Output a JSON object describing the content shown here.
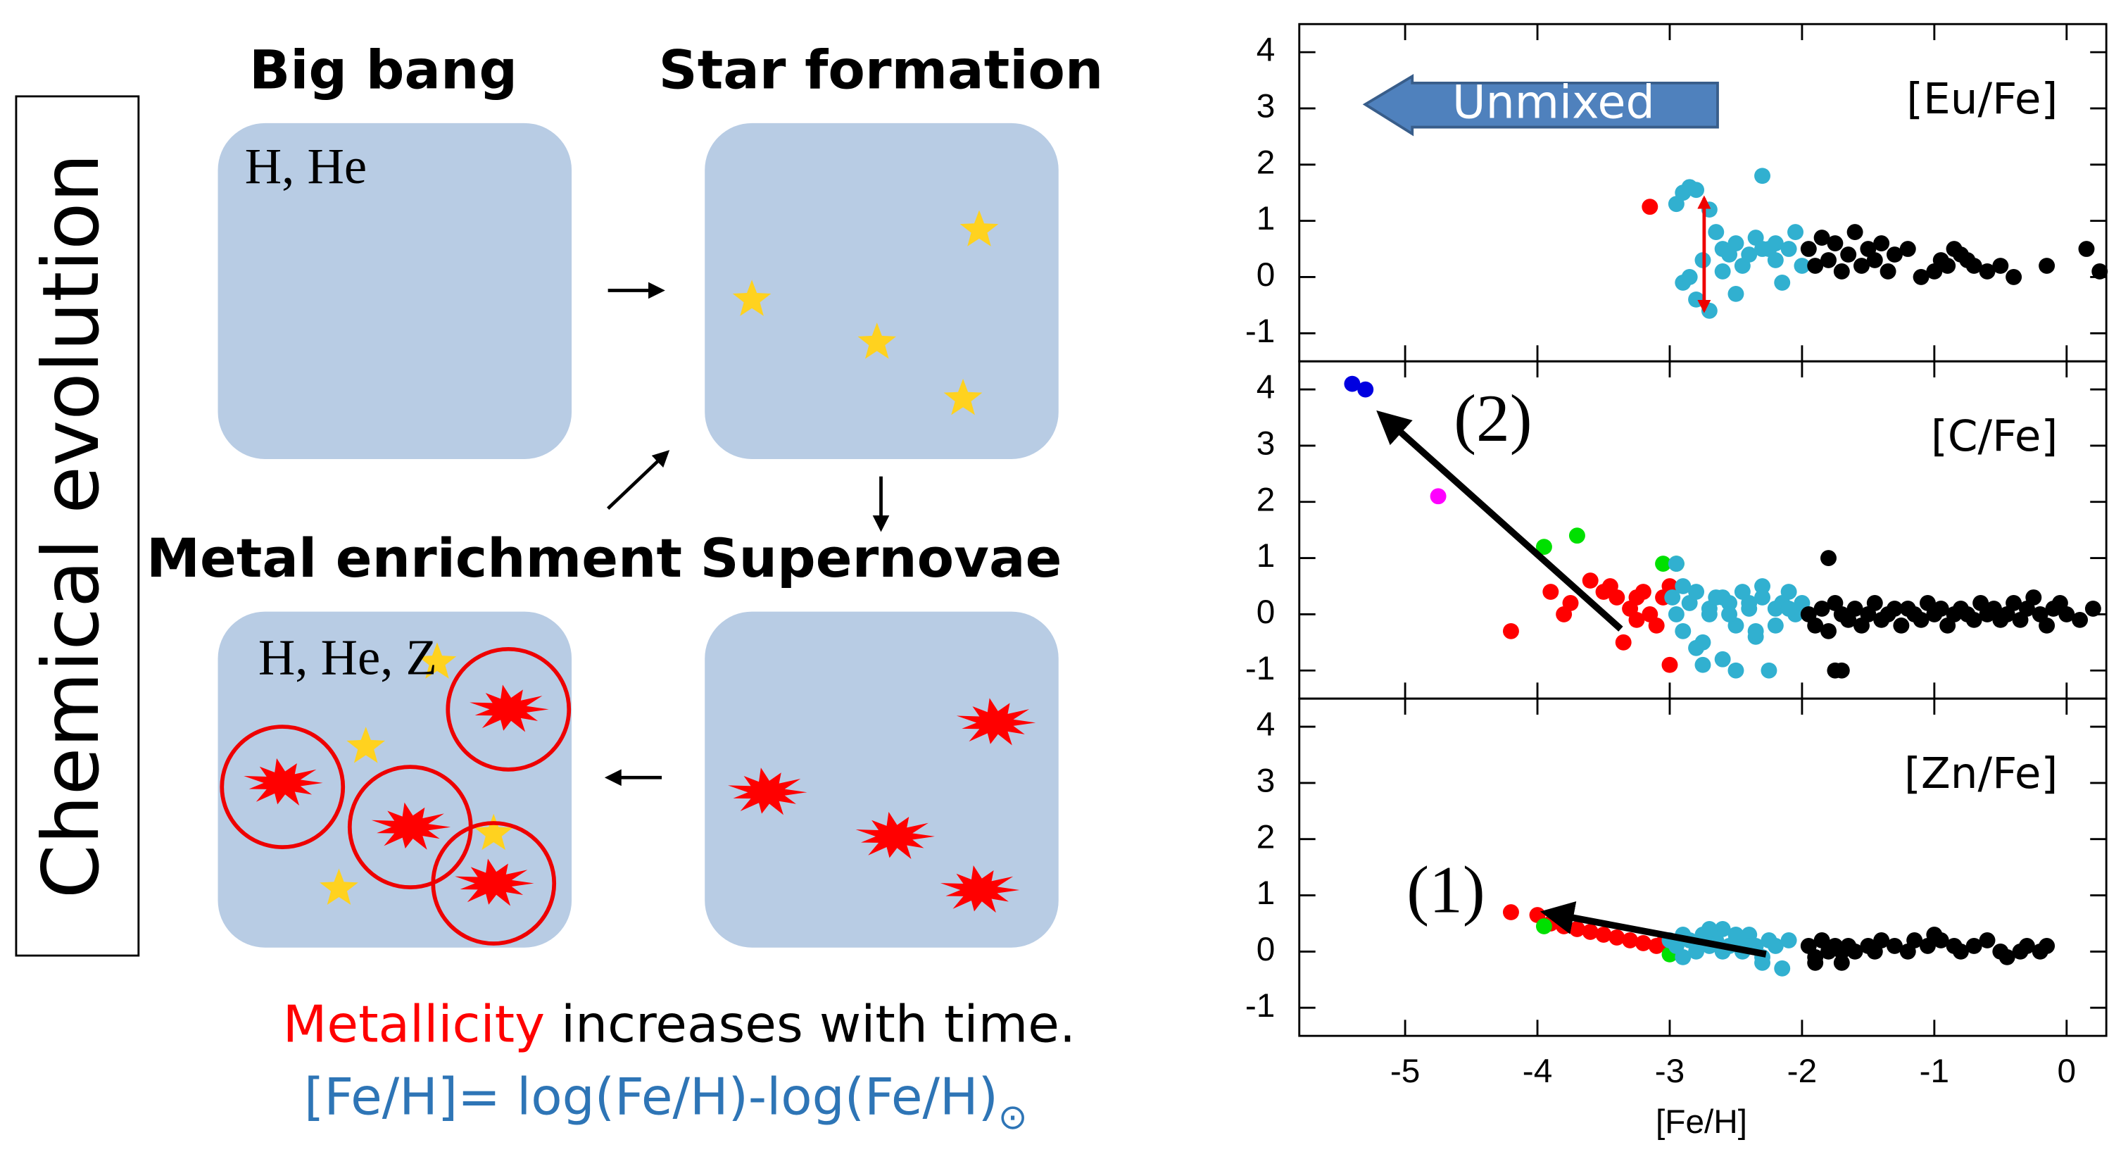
{
  "diagram": {
    "vertical_title": "Chemical evolution",
    "big_bang": "Big bang",
    "star_formation": "Star formation",
    "metal_enrichment": "Metal enrichment",
    "supernovae": "Supernovae",
    "box_big_bang": "H, He",
    "box_metal": "H, He, Z",
    "caption_highlight": "Metallicity",
    "caption_rest": "increases with time.",
    "formula": "[Fe/H]= log(Fe/H)-log(Fe/H)",
    "formula_subscript": "⊙"
  },
  "chart_data": [
    {
      "type": "scatter",
      "title": "[Eu/Fe]",
      "annotation": "Unmixed",
      "xlim": [
        -5.8,
        0.3
      ],
      "xticks": [
        -5,
        -4,
        -3,
        -2,
        -1,
        0
      ],
      "ylim": [
        -1.5,
        4.5
      ],
      "yticks": [
        -1,
        0,
        1,
        2,
        3,
        4
      ],
      "series": [
        {
          "color": "#ff0000",
          "x": [
            -3.15
          ],
          "values": [
            1.25
          ]
        },
        {
          "color": "#31b0d0",
          "x": [
            -2.95,
            -2.9,
            -2.85,
            -2.8,
            -2.75,
            -2.7,
            -2.65,
            -2.6,
            -2.55,
            -2.5,
            -2.45,
            -2.4,
            -2.35,
            -2.3,
            -2.25,
            -2.2,
            -2.15,
            -2.1,
            -2.05,
            -2.0,
            -2.9,
            -2.8,
            -2.7,
            -2.85,
            -2.3,
            -2.5,
            -2.6,
            -2.2
          ],
          "values": [
            1.3,
            1.5,
            1.6,
            1.55,
            0.3,
            1.2,
            0.8,
            0.5,
            0.4,
            0.6,
            0.2,
            0.4,
            0.7,
            1.8,
            0.5,
            0.3,
            -0.1,
            0.5,
            0.8,
            0.2,
            -0.1,
            -0.4,
            -0.6,
            0.0,
            0.5,
            -0.3,
            0.1,
            0.6
          ]
        },
        {
          "color": "#000000",
          "x": [
            -1.95,
            -1.9,
            -1.85,
            -1.8,
            -1.75,
            -1.7,
            -1.65,
            -1.6,
            -1.55,
            -1.5,
            -1.45,
            -1.4,
            -1.35,
            -1.3,
            -1.2,
            -1.1,
            -1.0,
            -0.95,
            -0.9,
            -0.85,
            -0.8,
            -0.75,
            -0.7,
            -0.6,
            -0.5,
            -0.4,
            -0.15,
            0.15,
            0.25
          ],
          "values": [
            0.5,
            0.2,
            0.7,
            0.3,
            0.6,
            0.1,
            0.4,
            0.8,
            0.2,
            0.5,
            0.3,
            0.6,
            0.1,
            0.4,
            0.5,
            0.0,
            0.1,
            0.3,
            0.2,
            0.5,
            0.4,
            0.3,
            0.2,
            0.1,
            0.2,
            0.0,
            0.2,
            0.5,
            0.1
          ]
        }
      ]
    },
    {
      "type": "scatter",
      "title": "[C/Fe]",
      "annotation": "(2)",
      "xlim": [
        -5.8,
        0.3
      ],
      "xticks": [
        -5,
        -4,
        -3,
        -2,
        -1,
        0
      ],
      "ylim": [
        -1.5,
        4.5
      ],
      "yticks": [
        -1,
        0,
        1,
        2,
        3,
        4
      ],
      "series": [
        {
          "color": "#0000e0",
          "x": [
            -5.4,
            -5.3
          ],
          "values": [
            4.1,
            4.0
          ]
        },
        {
          "color": "#ff00ff",
          "x": [
            -4.75
          ],
          "values": [
            2.1
          ]
        },
        {
          "color": "#00e000",
          "x": [
            -3.95,
            -3.7,
            -3.05,
            -2.95
          ],
          "values": [
            1.2,
            1.4,
            0.9,
            0.9
          ]
        },
        {
          "color": "#ff0000",
          "x": [
            -4.2,
            -3.9,
            -3.8,
            -3.75,
            -3.6,
            -3.5,
            -3.45,
            -3.4,
            -3.35,
            -3.3,
            -3.25,
            -3.2,
            -3.15,
            -3.1,
            -3.05,
            -3.0,
            -3.0,
            -3.25
          ],
          "values": [
            -0.3,
            0.4,
            0.0,
            0.2,
            0.6,
            0.4,
            0.5,
            0.3,
            -0.5,
            0.1,
            0.3,
            0.4,
            0.0,
            -0.2,
            0.3,
            -0.9,
            0.5,
            -0.1
          ]
        },
        {
          "color": "#31b0d0",
          "x": [
            -2.98,
            -2.95,
            -2.9,
            -2.85,
            -2.8,
            -2.75,
            -2.7,
            -2.65,
            -2.6,
            -2.55,
            -2.5,
            -2.45,
            -2.4,
            -2.35,
            -2.3,
            -2.25,
            -2.2,
            -2.15,
            -2.1,
            -2.05,
            -2.0,
            -2.9,
            -2.8,
            -2.7,
            -2.6,
            -2.5,
            -2.4,
            -2.3,
            -2.2,
            -2.1,
            -2.95,
            -2.75,
            -2.55,
            -2.35
          ],
          "values": [
            0.3,
            0.0,
            -0.3,
            0.2,
            0.4,
            -0.5,
            0.1,
            0.3,
            -0.8,
            0.2,
            -0.2,
            0.4,
            0.1,
            -0.4,
            0.3,
            -1.0,
            0.1,
            0.2,
            0.4,
            0.0,
            0.2,
            0.5,
            -0.6,
            0.0,
            0.3,
            -1.0,
            0.2,
            0.5,
            -0.2,
            0.1,
            0.9,
            -0.9,
            0.0,
            -0.3
          ]
        },
        {
          "color": "#000000",
          "x": [
            -1.95,
            -1.9,
            -1.85,
            -1.8,
            -1.75,
            -1.7,
            -1.65,
            -1.6,
            -1.55,
            -1.5,
            -1.45,
            -1.4,
            -1.35,
            -1.3,
            -1.25,
            -1.2,
            -1.15,
            -1.1,
            -1.05,
            -1.0,
            -0.95,
            -0.9,
            -0.85,
            -0.8,
            -0.75,
            -0.7,
            -0.65,
            -0.6,
            -0.55,
            -0.5,
            -0.45,
            -0.4,
            -0.35,
            -0.3,
            -0.25,
            -0.2,
            -0.15,
            -0.1,
            -0.05,
            0.0,
            0.1,
            0.2,
            -1.8,
            -1.75,
            -1.7
          ],
          "values": [
            0.0,
            -0.2,
            0.1,
            -0.3,
            0.2,
            0.0,
            -0.1,
            0.1,
            -0.2,
            0.0,
            0.2,
            -0.1,
            0.0,
            0.1,
            -0.2,
            0.1,
            0.0,
            -0.1,
            0.2,
            0.0,
            0.1,
            -0.2,
            0.0,
            0.1,
            0.0,
            -0.1,
            0.2,
            0.0,
            0.1,
            -0.1,
            0.0,
            0.2,
            -0.1,
            0.1,
            0.3,
            0.0,
            -0.2,
            0.1,
            0.2,
            0.0,
            -0.1,
            0.1,
            1.0,
            -1.0,
            -1.0
          ]
        }
      ]
    },
    {
      "type": "scatter",
      "title": "[Zn/Fe]",
      "annotation": "(1)",
      "x_label": "[Fe/H]",
      "xlim": [
        -5.8,
        0.3
      ],
      "xticks": [
        -5,
        -4,
        -3,
        -2,
        -1,
        0
      ],
      "ylim": [
        -1.5,
        4.5
      ],
      "yticks": [
        -1,
        0,
        1,
        2,
        3,
        4
      ],
      "series": [
        {
          "color": "#ff0000",
          "x": [
            -4.2,
            -4.0,
            -3.9,
            -3.8,
            -3.7,
            -3.6,
            -3.5,
            -3.4,
            -3.3,
            -3.2,
            -3.1,
            -3.05
          ],
          "values": [
            0.7,
            0.65,
            0.5,
            0.45,
            0.4,
            0.35,
            0.3,
            0.25,
            0.2,
            0.15,
            0.1,
            0.15
          ]
        },
        {
          "color": "#00e000",
          "x": [
            -3.95,
            -3.0
          ],
          "values": [
            0.45,
            -0.05
          ]
        },
        {
          "color": "#31b0d0",
          "x": [
            -3.0,
            -2.95,
            -2.9,
            -2.85,
            -2.8,
            -2.75,
            -2.7,
            -2.65,
            -2.6,
            -2.55,
            -2.5,
            -2.45,
            -2.4,
            -2.35,
            -2.3,
            -2.25,
            -2.2,
            -2.15,
            -2.1,
            -2.9,
            -2.7,
            -2.5,
            -2.3,
            -2.6,
            -2.4
          ],
          "values": [
            0.2,
            0.1,
            0.3,
            0.2,
            0.0,
            0.3,
            0.1,
            0.2,
            0.4,
            0.1,
            0.2,
            0.0,
            0.3,
            0.1,
            -0.1,
            0.2,
            0.1,
            -0.3,
            0.2,
            -0.1,
            0.4,
            0.3,
            -0.2,
            0.0,
            0.1
          ]
        },
        {
          "color": "#000000",
          "x": [
            -1.95,
            -1.9,
            -1.85,
            -1.8,
            -1.75,
            -1.7,
            -1.65,
            -1.6,
            -1.5,
            -1.45,
            -1.4,
            -1.3,
            -1.2,
            -1.15,
            -1.05,
            -1.0,
            -0.95,
            -0.85,
            -0.8,
            -0.7,
            -0.6,
            -0.5,
            -0.45,
            -0.35,
            -0.3,
            -0.2,
            -0.15,
            -1.9,
            -1.7
          ],
          "values": [
            0.1,
            -0.1,
            0.2,
            0.0,
            0.1,
            -0.2,
            0.1,
            0.0,
            0.1,
            0.0,
            0.2,
            0.1,
            0.0,
            0.2,
            0.1,
            0.3,
            0.2,
            0.1,
            0.0,
            0.1,
            0.2,
            0.0,
            -0.1,
            0.0,
            0.1,
            0.0,
            0.1,
            -0.2,
            0.0
          ]
        }
      ]
    }
  ]
}
